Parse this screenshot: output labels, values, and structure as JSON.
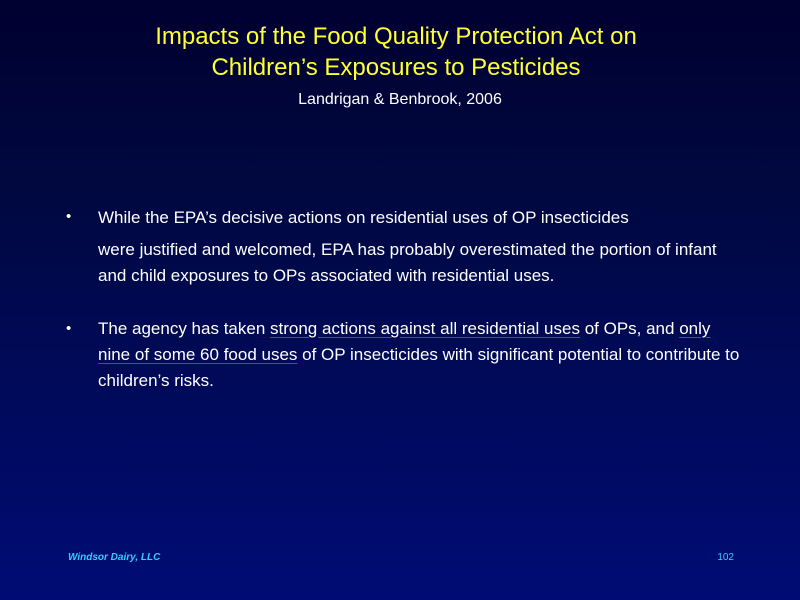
{
  "slide": {
    "title_line1": "Impacts of the Food Quality Protection Act on",
    "title_line2": "Children’s Exposures to Pesticides",
    "subtitle": "Landrigan & Benbrook, 2006",
    "bullet_glyph": "•",
    "bullet1": {
      "line1": "While the EPA’s decisive actions on residential uses of OP insecticides",
      "rest": "were justified and welcomed, EPA has probably overestimated the portion of infant and child exposures to OPs associated with residential uses."
    },
    "bullet2": {
      "part1": "The agency has taken ",
      "underline1": "strong actions against all residential uses",
      "part2": " of OPs, and ",
      "underline2": "only nine of some 60 food uses",
      "part3": " of OP insecticides with significant potential to contribute to children’s risks."
    },
    "footer_left": "Windsor Dairy, LLC",
    "page_number": "102"
  },
  "colors": {
    "title": "#ffff33",
    "body_text": "#ffffff",
    "footer": "#33ccff",
    "underline": "#e01a1a",
    "background_top": "#000030",
    "background_bottom": "#000c74"
  }
}
